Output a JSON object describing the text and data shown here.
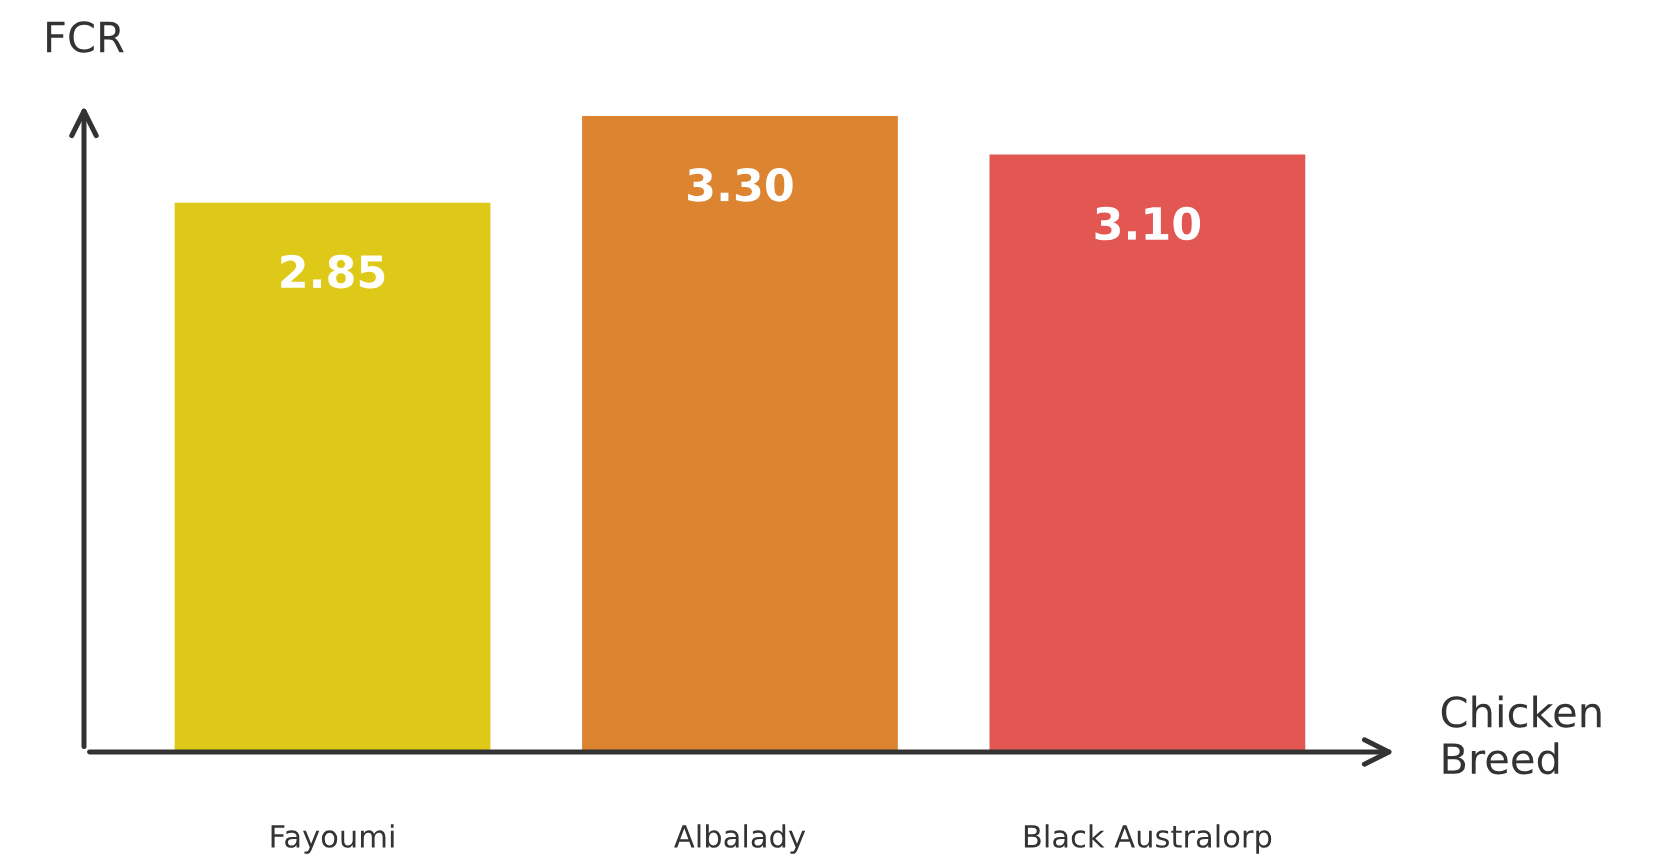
{
  "chart_data": {
    "type": "bar",
    "xlabel": "Chicken\nBreed",
    "ylabel": "FCR",
    "categories": [
      "Fayoumi",
      "Albalady",
      "Black Australorp"
    ],
    "values": [
      2.85,
      3.3,
      3.1
    ],
    "colors": [
      "#dfc918",
      "#dc8430",
      "#e25752"
    ],
    "value_labels": [
      "2.85",
      "3.30",
      "3.10"
    ],
    "tick_labels": "x",
    "grid": false,
    "legend": false
  }
}
